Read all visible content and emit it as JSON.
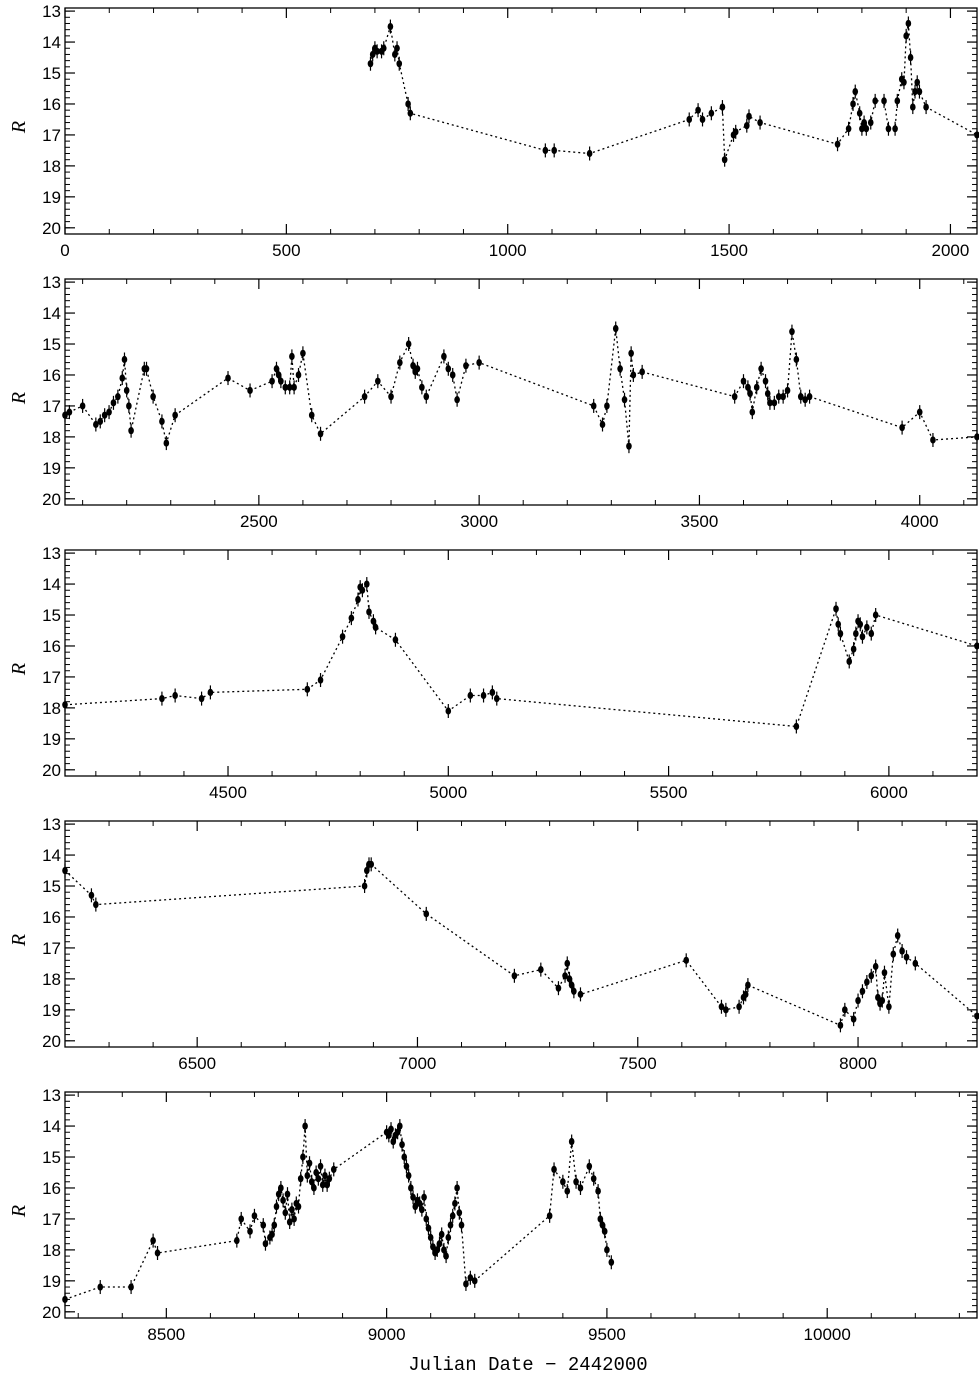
{
  "figure": {
    "xlabel": "Julian Date − 2442000"
  },
  "chart_data": [
    {
      "type": "line",
      "ylabel": "R",
      "xlim": [
        0,
        2060
      ],
      "ylim": [
        20.2,
        12.9
      ],
      "xticks": [
        0,
        500,
        1000,
        1500,
        2000
      ],
      "yticks": [
        13,
        14,
        15,
        16,
        17,
        18,
        19,
        20
      ],
      "series": [
        {
          "x": [
            690,
            695,
            700,
            705,
            715,
            720,
            735,
            745,
            750,
            755,
            775,
            780,
            1085,
            1105,
            1185,
            1410,
            1430,
            1440,
            1460,
            1485,
            1490,
            1510,
            1515,
            1540,
            1545,
            1570,
            1745,
            1770,
            1780,
            1785,
            1795,
            1800,
            1805,
            1810,
            1820,
            1830,
            1850,
            1860,
            1875,
            1880,
            1890,
            1895,
            1900,
            1905,
            1910,
            1915,
            1920,
            1925,
            1930,
            1945,
            2060
          ],
          "y": [
            14.7,
            14.4,
            14.2,
            14.3,
            14.3,
            14.2,
            13.5,
            14.4,
            14.2,
            14.7,
            16.0,
            16.3,
            17.5,
            17.5,
            17.6,
            16.5,
            16.2,
            16.5,
            16.3,
            16.1,
            17.8,
            17.0,
            16.9,
            16.7,
            16.4,
            16.6,
            17.3,
            16.8,
            16.0,
            15.6,
            16.3,
            16.8,
            16.6,
            16.8,
            16.6,
            15.9,
            15.9,
            16.8,
            16.8,
            15.9,
            15.2,
            15.3,
            13.8,
            13.4,
            14.5,
            16.1,
            15.6,
            15.3,
            15.6,
            16.1,
            17.0
          ]
        }
      ]
    },
    {
      "type": "line",
      "ylabel": "R",
      "xlim": [
        2060,
        4130
      ],
      "ylim": [
        20.2,
        12.9
      ],
      "xticks": [
        2500,
        3000,
        3500,
        4000
      ],
      "yticks": [
        13,
        14,
        15,
        16,
        17,
        18,
        19,
        20
      ],
      "series": [
        {
          "x": [
            2060,
            2070,
            2100,
            2130,
            2140,
            2150,
            2160,
            2170,
            2180,
            2190,
            2195,
            2200,
            2205,
            2210,
            2240,
            2245,
            2260,
            2280,
            2290,
            2310,
            2430,
            2480,
            2530,
            2540,
            2545,
            2550,
            2560,
            2570,
            2575,
            2580,
            2590,
            2600,
            2620,
            2640,
            2740,
            2770,
            2800,
            2820,
            2840,
            2850,
            2855,
            2860,
            2870,
            2880,
            2920,
            2930,
            2940,
            2950,
            2970,
            3000,
            3260,
            3280,
            3290,
            3310,
            3320,
            3330,
            3340,
            3345,
            3350,
            3370,
            3580,
            3600,
            3610,
            3615,
            3620,
            3630,
            3640,
            3650,
            3655,
            3660,
            3670,
            3680,
            3690,
            3700,
            3710,
            3720,
            3730,
            3740,
            3750,
            3960,
            4000,
            4030,
            4130
          ],
          "y": [
            17.3,
            17.2,
            17.0,
            17.6,
            17.5,
            17.3,
            17.2,
            16.9,
            16.7,
            16.1,
            15.5,
            16.5,
            17.0,
            17.8,
            15.8,
            15.8,
            16.7,
            17.5,
            18.2,
            17.3,
            16.1,
            16.5,
            16.2,
            15.8,
            16.0,
            16.2,
            16.4,
            16.4,
            15.4,
            16.4,
            16.0,
            15.3,
            17.3,
            17.9,
            16.7,
            16.2,
            16.7,
            15.6,
            15.0,
            15.7,
            15.9,
            15.8,
            16.4,
            16.7,
            15.4,
            15.8,
            16.0,
            16.8,
            15.7,
            15.6,
            17.0,
            17.6,
            17.0,
            14.5,
            15.8,
            16.8,
            18.3,
            15.3,
            16.0,
            15.9,
            16.7,
            16.2,
            16.4,
            16.6,
            17.2,
            16.4,
            15.8,
            16.2,
            16.6,
            16.9,
            16.9,
            16.7,
            16.7,
            16.5,
            14.6,
            15.5,
            16.7,
            16.8,
            16.7,
            17.7,
            17.2,
            18.1,
            18.0
          ]
        }
      ]
    },
    {
      "type": "line",
      "ylabel": "R",
      "xlim": [
        4130,
        6200
      ],
      "ylim": [
        20.2,
        12.9
      ],
      "xticks": [
        4500,
        5000,
        5500,
        6000
      ],
      "yticks": [
        13,
        14,
        15,
        16,
        17,
        18,
        19,
        20
      ],
      "series": [
        {
          "x": [
            4130,
            4350,
            4380,
            4440,
            4460,
            4680,
            4710,
            4760,
            4780,
            4795,
            4800,
            4805,
            4815,
            4820,
            4830,
            4835,
            4880,
            5000,
            5050,
            5080,
            5100,
            5110,
            5790,
            5880,
            5885,
            5890,
            5910,
            5920,
            5925,
            5930,
            5935,
            5940,
            5950,
            5960,
            5970,
            6200
          ],
          "y": [
            17.9,
            17.7,
            17.6,
            17.7,
            17.5,
            17.4,
            17.1,
            15.7,
            15.1,
            14.5,
            14.1,
            14.2,
            14.0,
            14.9,
            15.2,
            15.4,
            15.8,
            18.1,
            17.6,
            17.6,
            17.5,
            17.7,
            18.6,
            14.8,
            15.3,
            15.6,
            16.5,
            16.1,
            15.6,
            15.2,
            15.3,
            15.7,
            15.4,
            15.6,
            15.0,
            16.0
          ]
        }
      ]
    },
    {
      "type": "line",
      "ylabel": "R",
      "xlim": [
        6200,
        8270
      ],
      "ylim": [
        20.2,
        12.9
      ],
      "xticks": [
        6500,
        7000,
        7500,
        8000
      ],
      "yticks": [
        13,
        14,
        15,
        16,
        17,
        18,
        19,
        20
      ],
      "series": [
        {
          "x": [
            6200,
            6260,
            6270,
            6880,
            6885,
            6890,
            6895,
            7020,
            7220,
            7280,
            7320,
            7335,
            7340,
            7345,
            7350,
            7355,
            7370,
            7610,
            7690,
            7700,
            7730,
            7740,
            7745,
            7750,
            7960,
            7970,
            7990,
            8000,
            8010,
            8020,
            8030,
            8040,
            8045,
            8050,
            8055,
            8060,
            8070,
            8080,
            8090,
            8100,
            8110,
            8130,
            8270
          ],
          "y": [
            14.5,
            15.3,
            15.6,
            15.0,
            14.5,
            14.3,
            14.3,
            15.9,
            17.9,
            17.7,
            18.3,
            17.9,
            17.5,
            18.0,
            18.2,
            18.4,
            18.5,
            17.4,
            18.9,
            19.0,
            18.9,
            18.6,
            18.5,
            18.2,
            19.5,
            19.0,
            19.3,
            18.7,
            18.4,
            18.1,
            17.9,
            17.6,
            18.6,
            18.8,
            18.7,
            17.8,
            18.9,
            17.2,
            16.6,
            17.1,
            17.3,
            17.5,
            19.2
          ]
        }
      ]
    },
    {
      "type": "line",
      "ylabel": "R",
      "xlim": [
        8270,
        10340
      ],
      "ylim": [
        20.2,
        12.9
      ],
      "xticks": [
        8500,
        9000,
        9500,
        10000
      ],
      "yticks": [
        13,
        14,
        15,
        16,
        17,
        18,
        19,
        20
      ],
      "series": [
        {
          "x": [
            8270,
            8350,
            8420,
            8470,
            8480,
            8660,
            8670,
            8690,
            8700,
            8720,
            8725,
            8735,
            8740,
            8745,
            8750,
            8755,
            8760,
            8765,
            8770,
            8775,
            8780,
            8785,
            8790,
            8795,
            8800,
            8805,
            8810,
            8815,
            8820,
            8825,
            8830,
            8835,
            8840,
            8845,
            8850,
            8855,
            8860,
            8865,
            8870,
            8880,
            9000,
            9005,
            9010,
            9015,
            9020,
            9025,
            9030,
            9035,
            9040,
            9045,
            9050,
            9055,
            9060,
            9065,
            9070,
            9075,
            9080,
            9085,
            9090,
            9095,
            9100,
            9105,
            9110,
            9115,
            9120,
            9125,
            9130,
            9135,
            9140,
            9145,
            9150,
            9155,
            9160,
            9165,
            9170,
            9180,
            9190,
            9200,
            9370,
            9380,
            9400,
            9410,
            9420,
            9430,
            9440,
            9460,
            9470,
            9480,
            9485,
            9490,
            9495,
            9500,
            9510
          ],
          "y": [
            19.6,
            19.2,
            19.2,
            17.7,
            18.1,
            17.7,
            17.0,
            17.4,
            16.9,
            17.2,
            17.8,
            17.6,
            17.5,
            17.2,
            16.6,
            16.2,
            16.0,
            16.4,
            16.8,
            16.2,
            17.1,
            16.7,
            17.0,
            16.5,
            16.6,
            15.7,
            15.0,
            14.0,
            15.6,
            15.2,
            15.8,
            16.0,
            15.5,
            15.7,
            15.3,
            15.9,
            15.6,
            15.9,
            15.7,
            15.4,
            14.2,
            14.3,
            14.1,
            14.5,
            14.3,
            14.2,
            14.0,
            14.6,
            15.0,
            15.3,
            15.6,
            16.0,
            16.3,
            16.6,
            16.4,
            16.5,
            16.7,
            16.3,
            17.0,
            17.3,
            17.6,
            17.9,
            18.1,
            18.0,
            17.8,
            17.5,
            18.0,
            18.2,
            17.6,
            17.2,
            16.9,
            16.5,
            16.0,
            16.8,
            17.2,
            19.1,
            18.9,
            19.0,
            16.9,
            15.4,
            15.8,
            16.1,
            14.5,
            15.8,
            16.0,
            15.3,
            15.7,
            16.1,
            17.0,
            17.2,
            17.4,
            18.0,
            18.4
          ]
        }
      ]
    }
  ]
}
